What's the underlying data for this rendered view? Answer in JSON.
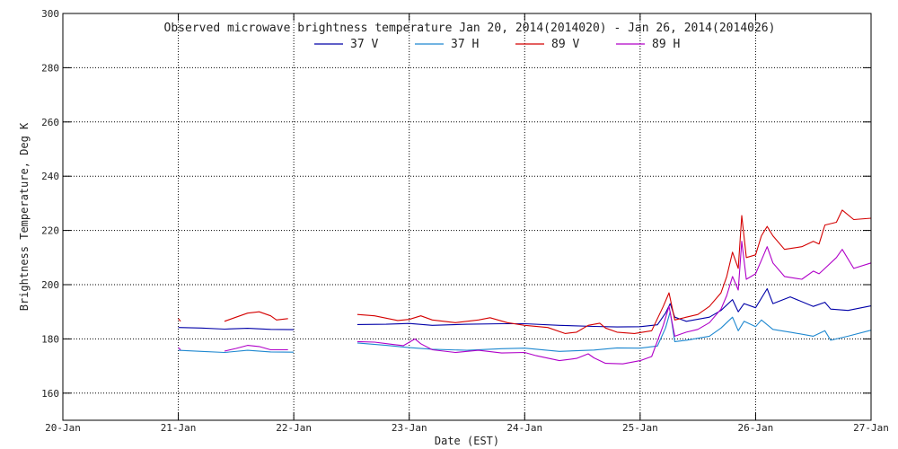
{
  "chart_data": {
    "type": "line",
    "title": "Observed microwave brightness temperature Jan 20, 2014(2014020) - Jan 26, 2014(2014026)",
    "xlabel": "Date (EST)",
    "ylabel": "Brightness Temperature, Deg K",
    "xlim": [
      0,
      7
    ],
    "ylim": [
      150,
      300
    ],
    "x_ticks": [
      {
        "x": 0,
        "label": "20-Jan"
      },
      {
        "x": 1,
        "label": "21-Jan"
      },
      {
        "x": 2,
        "label": "22-Jan"
      },
      {
        "x": 3,
        "label": "23-Jan"
      },
      {
        "x": 4,
        "label": "24-Jan"
      },
      {
        "x": 5,
        "label": "25-Jan"
      },
      {
        "x": 6,
        "label": "26-Jan"
      },
      {
        "x": 7,
        "label": "27-Jan"
      }
    ],
    "y_ticks": [
      160,
      180,
      200,
      220,
      240,
      260,
      280,
      300
    ],
    "grid": true,
    "legend_position": "top-center",
    "series": [
      {
        "name": "37 V",
        "color": "#0000a8",
        "segments": [
          [
            [
              1.0,
              184.2
            ],
            [
              1.2,
              184.0
            ],
            [
              1.4,
              183.6
            ],
            [
              1.6,
              183.9
            ],
            [
              1.8,
              183.5
            ],
            [
              2.0,
              183.4
            ]
          ],
          [
            [
              2.55,
              185.3
            ],
            [
              2.8,
              185.4
            ],
            [
              3.0,
              185.7
            ],
            [
              3.2,
              185.0
            ],
            [
              3.5,
              185.4
            ],
            [
              3.8,
              185.6
            ],
            [
              4.0,
              185.6
            ],
            [
              4.3,
              185.0
            ],
            [
              4.6,
              184.6
            ],
            [
              4.8,
              184.4
            ],
            [
              5.0,
              184.5
            ],
            [
              5.15,
              185.2
            ],
            [
              5.22,
              189.5
            ],
            [
              5.26,
              193.0
            ],
            [
              5.3,
              188.0
            ],
            [
              5.4,
              186.5
            ],
            [
              5.6,
              188.0
            ],
            [
              5.7,
              190.5
            ],
            [
              5.8,
              194.5
            ],
            [
              5.85,
              190.0
            ],
            [
              5.9,
              193.0
            ],
            [
              6.0,
              191.5
            ],
            [
              6.1,
              198.5
            ],
            [
              6.15,
              193.0
            ],
            [
              6.3,
              195.5
            ],
            [
              6.5,
              192.0
            ],
            [
              6.6,
              193.5
            ],
            [
              6.65,
              191.0
            ],
            [
              6.8,
              190.5
            ],
            [
              7.0,
              192.2
            ]
          ]
        ]
      },
      {
        "name": "37 H",
        "color": "#1e88d0",
        "segments": [
          [
            [
              1.0,
              175.8
            ],
            [
              1.2,
              175.4
            ],
            [
              1.4,
              175.0
            ],
            [
              1.6,
              175.8
            ],
            [
              1.8,
              175.2
            ],
            [
              2.0,
              175.1
            ]
          ],
          [
            [
              2.55,
              178.5
            ],
            [
              2.8,
              177.6
            ],
            [
              3.0,
              176.8
            ],
            [
              3.2,
              176.2
            ],
            [
              3.5,
              175.8
            ],
            [
              3.8,
              176.4
            ],
            [
              4.0,
              176.6
            ],
            [
              4.3,
              175.4
            ],
            [
              4.6,
              175.9
            ],
            [
              4.8,
              176.7
            ],
            [
              5.0,
              176.6
            ],
            [
              5.15,
              177.4
            ],
            [
              5.22,
              184.0
            ],
            [
              5.26,
              190.0
            ],
            [
              5.3,
              179.0
            ],
            [
              5.4,
              179.5
            ],
            [
              5.6,
              181.0
            ],
            [
              5.7,
              184.0
            ],
            [
              5.8,
              188.0
            ],
            [
              5.85,
              183.0
            ],
            [
              5.9,
              186.5
            ],
            [
              6.0,
              184.5
            ],
            [
              6.05,
              187.0
            ],
            [
              6.15,
              183.5
            ],
            [
              6.3,
              182.5
            ],
            [
              6.5,
              181.0
            ],
            [
              6.6,
              183.0
            ],
            [
              6.65,
              179.5
            ],
            [
              6.8,
              181.0
            ],
            [
              7.0,
              183.2
            ]
          ]
        ]
      },
      {
        "name": "89 V",
        "color": "#d40000",
        "segments": [
          [
            [
              1.0,
              187.5
            ],
            [
              1.02,
              186.5
            ]
          ],
          [
            [
              1.4,
              186.5
            ],
            [
              1.5,
              188.0
            ],
            [
              1.6,
              189.5
            ],
            [
              1.7,
              190.0
            ],
            [
              1.8,
              188.5
            ],
            [
              1.85,
              187.0
            ],
            [
              1.95,
              187.5
            ]
          ],
          [
            [
              2.55,
              189.0
            ],
            [
              2.7,
              188.5
            ],
            [
              2.9,
              186.8
            ],
            [
              3.0,
              187.2
            ],
            [
              3.1,
              188.5
            ],
            [
              3.2,
              187.0
            ],
            [
              3.4,
              186.0
            ],
            [
              3.6,
              187.0
            ],
            [
              3.7,
              187.8
            ],
            [
              3.85,
              186.0
            ],
            [
              4.0,
              185.0
            ],
            [
              4.2,
              184.2
            ],
            [
              4.35,
              182.0
            ],
            [
              4.45,
              182.5
            ],
            [
              4.55,
              185.0
            ],
            [
              4.65,
              185.8
            ],
            [
              4.7,
              184.0
            ],
            [
              4.8,
              182.5
            ],
            [
              4.95,
              182.0
            ],
            [
              5.1,
              183.0
            ],
            [
              5.2,
              192.0
            ],
            [
              5.25,
              197.0
            ],
            [
              5.3,
              187.0
            ],
            [
              5.4,
              188.0
            ],
            [
              5.5,
              189.0
            ],
            [
              5.6,
              192.0
            ],
            [
              5.7,
              197.0
            ],
            [
              5.75,
              203.0
            ],
            [
              5.8,
              212.0
            ],
            [
              5.85,
              206.0
            ],
            [
              5.88,
              225.5
            ],
            [
              5.92,
              210.0
            ],
            [
              6.0,
              211.0
            ],
            [
              6.05,
              218.0
            ],
            [
              6.1,
              221.5
            ],
            [
              6.15,
              218.0
            ],
            [
              6.25,
              213.0
            ],
            [
              6.4,
              214.0
            ],
            [
              6.5,
              216.0
            ],
            [
              6.55,
              215.0
            ],
            [
              6.6,
              222.0
            ],
            [
              6.7,
              223.0
            ],
            [
              6.75,
              227.5
            ],
            [
              6.85,
              224.0
            ],
            [
              7.0,
              224.5
            ]
          ]
        ]
      },
      {
        "name": "89 H",
        "color": "#b000c8",
        "segments": [
          [
            [
              1.0,
              176.8
            ],
            [
              1.02,
              176.0
            ]
          ],
          [
            [
              1.4,
              175.5
            ],
            [
              1.5,
              176.5
            ],
            [
              1.6,
              177.6
            ],
            [
              1.7,
              177.2
            ],
            [
              1.8,
              176.0
            ],
            [
              1.95,
              176.0
            ]
          ],
          [
            [
              2.55,
              179.0
            ],
            [
              2.7,
              178.8
            ],
            [
              2.85,
              178.0
            ],
            [
              2.95,
              177.5
            ],
            [
              3.05,
              180.0
            ],
            [
              3.1,
              178.2
            ],
            [
              3.2,
              176.0
            ],
            [
              3.4,
              175.0
            ],
            [
              3.6,
              175.8
            ],
            [
              3.8,
              174.8
            ],
            [
              4.0,
              175.0
            ],
            [
              4.1,
              173.8
            ],
            [
              4.3,
              172.0
            ],
            [
              4.45,
              172.8
            ],
            [
              4.55,
              174.5
            ],
            [
              4.6,
              173.0
            ],
            [
              4.7,
              171.0
            ],
            [
              4.85,
              170.8
            ],
            [
              5.0,
              172.0
            ],
            [
              5.1,
              173.5
            ],
            [
              5.2,
              185.0
            ],
            [
              5.25,
              192.0
            ],
            [
              5.3,
              181.0
            ],
            [
              5.4,
              182.5
            ],
            [
              5.5,
              183.5
            ],
            [
              5.6,
              186.0
            ],
            [
              5.7,
              191.0
            ],
            [
              5.75,
              196.0
            ],
            [
              5.8,
              203.0
            ],
            [
              5.85,
              198.0
            ],
            [
              5.88,
              216.0
            ],
            [
              5.92,
              202.0
            ],
            [
              6.0,
              204.0
            ],
            [
              6.05,
              209.0
            ],
            [
              6.1,
              214.0
            ],
            [
              6.15,
              208.0
            ],
            [
              6.25,
              203.0
            ],
            [
              6.4,
              202.0
            ],
            [
              6.5,
              205.0
            ],
            [
              6.55,
              204.0
            ],
            [
              6.6,
              206.0
            ],
            [
              6.7,
              210.0
            ],
            [
              6.75,
              213.0
            ],
            [
              6.85,
              206.0
            ],
            [
              7.0,
              208.0
            ]
          ]
        ]
      }
    ]
  }
}
